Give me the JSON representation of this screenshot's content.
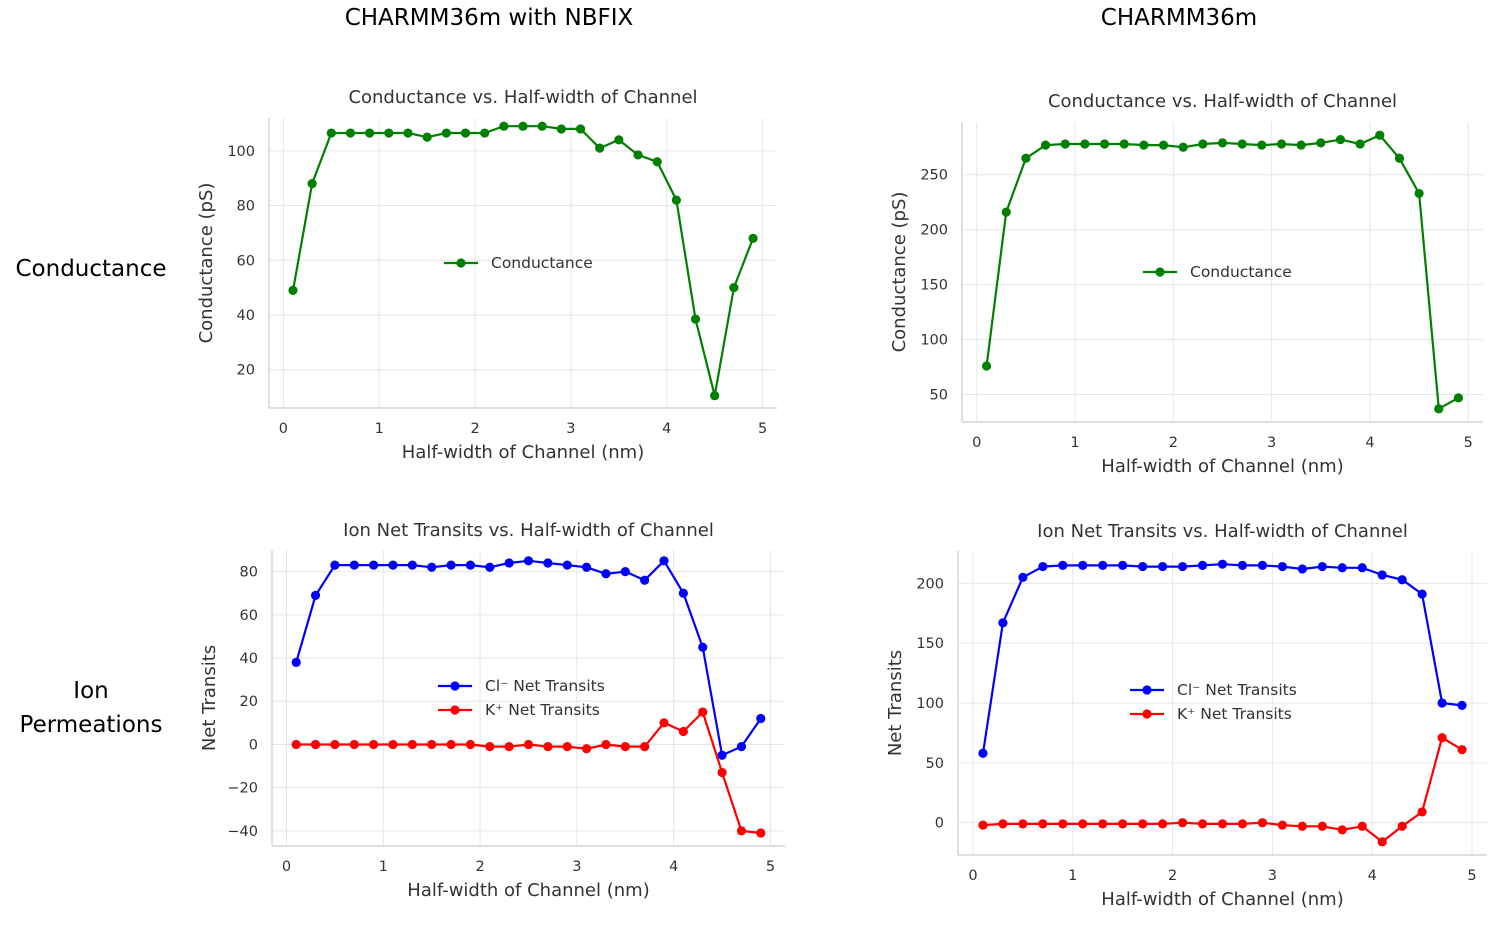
{
  "header": {
    "left_title": "CHARMM36m with NBFIX",
    "right_title": "CHARMM36m"
  },
  "rows": {
    "conductance": "Conductance",
    "ion_line1": "Ion",
    "ion_line2": "Permeations"
  },
  "chart_data": [
    {
      "id": "tl",
      "type": "line",
      "title": "Conductance vs. Half-width of Channel",
      "xlabel": "Half-width of Channel (nm)",
      "ylabel": "Conductance (pS)",
      "xlim": [
        -0.15,
        5.15
      ],
      "ylim": [
        6,
        112
      ],
      "xticks": [
        0,
        1,
        2,
        3,
        4,
        5
      ],
      "yticks": [
        20,
        40,
        60,
        80,
        100
      ],
      "ytick_labels": [
        "20",
        "40",
        "60",
        "80",
        "100"
      ],
      "grid": true,
      "legend_position": "center",
      "x": [
        0.1,
        0.3,
        0.5,
        0.7,
        0.9,
        1.1,
        1.3,
        1.5,
        1.7,
        1.9,
        2.1,
        2.3,
        2.5,
        2.7,
        2.9,
        3.1,
        3.3,
        3.5,
        3.7,
        3.9,
        4.1,
        4.3,
        4.5,
        4.7,
        4.9
      ],
      "series": [
        {
          "name": "Conductance",
          "color": "#008000",
          "values": [
            49,
            88,
            106.5,
            106.5,
            106.5,
            106.5,
            106.5,
            105,
            106.5,
            106.5,
            106.5,
            109,
            109,
            109,
            108,
            108,
            101,
            104,
            98.5,
            96,
            82,
            38.5,
            10.5,
            50,
            68
          ]
        }
      ]
    },
    {
      "id": "tr",
      "type": "line",
      "title": "Conductance vs. Half-width of Channel",
      "xlabel": "Half-width of Channel (nm)",
      "ylabel": "Conductance (pS)",
      "xlim": [
        -0.15,
        5.15
      ],
      "ylim": [
        25,
        298
      ],
      "xticks": [
        0,
        1,
        2,
        3,
        4,
        5
      ],
      "yticks": [
        50,
        100,
        150,
        200,
        250
      ],
      "ytick_labels": [
        "50",
        "100",
        "150",
        "200",
        "250"
      ],
      "grid": true,
      "legend_position": "center",
      "x": [
        0.1,
        0.3,
        0.5,
        0.7,
        0.9,
        1.1,
        1.3,
        1.5,
        1.7,
        1.9,
        2.1,
        2.3,
        2.5,
        2.7,
        2.9,
        3.1,
        3.3,
        3.5,
        3.7,
        3.9,
        4.1,
        4.3,
        4.5,
        4.7,
        4.9
      ],
      "series": [
        {
          "name": "Conductance",
          "color": "#008000",
          "values": [
            76,
            216,
            265,
            277,
            278,
            278,
            278,
            278,
            277,
            277,
            275,
            278,
            279,
            278,
            277,
            278,
            277,
            279,
            282,
            278,
            286,
            265,
            233,
            37,
            47
          ]
        }
      ]
    },
    {
      "id": "bl",
      "type": "line",
      "title": "Ion Net Transits vs. Half-width of Channel",
      "xlabel": "Half-width of Channel (nm)",
      "ylabel": "Net Transits",
      "xlim": [
        -0.15,
        5.15
      ],
      "ylim": [
        -47,
        90
      ],
      "xticks": [
        0,
        1,
        2,
        3,
        4,
        5
      ],
      "yticks": [
        -40,
        -20,
        0,
        20,
        40,
        60,
        80
      ],
      "ytick_labels": [
        "−40",
        "−20",
        "0",
        "20",
        "40",
        "60",
        "80"
      ],
      "grid": true,
      "legend_position": "center",
      "x": [
        0.1,
        0.3,
        0.5,
        0.7,
        0.9,
        1.1,
        1.3,
        1.5,
        1.7,
        1.9,
        2.1,
        2.3,
        2.5,
        2.7,
        2.9,
        3.1,
        3.3,
        3.5,
        3.7,
        3.9,
        4.1,
        4.3,
        4.5,
        4.7,
        4.9
      ],
      "series": [
        {
          "name": "Cl⁻ Net Transits",
          "color": "#0000ff",
          "values": [
            38,
            69,
            83,
            83,
            83,
            83,
            83,
            82,
            83,
            83,
            82,
            84,
            85,
            84,
            83,
            82,
            79,
            80,
            76,
            85,
            70,
            45,
            -5,
            -1,
            12
          ]
        },
        {
          "name": "K⁺ Net Transits",
          "color": "#ff0000",
          "values": [
            0,
            0,
            0,
            0,
            0,
            0,
            0,
            0,
            0,
            0,
            -1,
            -1,
            0,
            -1,
            -1,
            -2,
            0,
            -1,
            -1,
            10,
            6,
            15,
            -13,
            -40,
            -41
          ]
        }
      ]
    },
    {
      "id": "br",
      "type": "line",
      "title": "Ion Net Transits vs. Half-width of Channel",
      "xlabel": "Half-width of Channel (nm)",
      "ylabel": "Net Transits",
      "xlim": [
        -0.15,
        5.15
      ],
      "ylim": [
        -27,
        227
      ],
      "xticks": [
        0,
        1,
        2,
        3,
        4,
        5
      ],
      "yticks": [
        0,
        50,
        100,
        150,
        200
      ],
      "ytick_labels": [
        "0",
        "50",
        "100",
        "150",
        "200"
      ],
      "grid": true,
      "legend_position": "center",
      "x": [
        0.1,
        0.3,
        0.5,
        0.7,
        0.9,
        1.1,
        1.3,
        1.5,
        1.7,
        1.9,
        2.1,
        2.3,
        2.5,
        2.7,
        2.9,
        3.1,
        3.3,
        3.5,
        3.7,
        3.9,
        4.1,
        4.3,
        4.5,
        4.7,
        4.9
      ],
      "series": [
        {
          "name": "Cl⁻ Net Transits",
          "color": "#0000ff",
          "values": [
            58,
            167,
            205,
            214,
            215,
            215,
            215,
            215,
            214,
            214,
            214,
            215,
            216,
            215,
            215,
            214,
            212,
            214,
            213,
            213,
            207,
            203,
            191,
            100,
            98
          ]
        },
        {
          "name": "K⁺ Net Transits",
          "color": "#ff0000",
          "values": [
            -2,
            -1,
            -1,
            -1,
            -1,
            -1,
            -1,
            -1,
            -1,
            -1,
            0,
            -1,
            -1,
            -1,
            0,
            -2,
            -3,
            -3,
            -6,
            -3,
            -16,
            -3,
            9,
            71,
            61
          ]
        }
      ]
    }
  ]
}
